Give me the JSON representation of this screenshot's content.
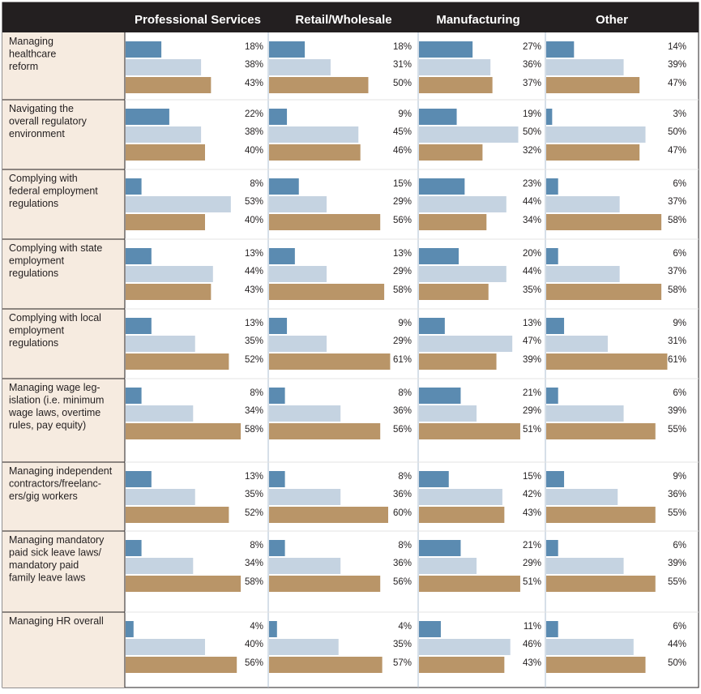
{
  "chart_data": {
    "type": "bar",
    "orientation": "horizontal",
    "panels": [
      "Professional Services",
      "Retail/Wholesale",
      "Manufacturing",
      "Other"
    ],
    "series_colors": [
      "#5b8bb1",
      "#c5d3e1",
      "#b99568"
    ],
    "rows": [
      {
        "label_lines": [
          "Managing",
          "healthcare",
          "reform"
        ],
        "values": [
          [
            18,
            38,
            43
          ],
          [
            18,
            31,
            50
          ],
          [
            27,
            36,
            37
          ],
          [
            14,
            39,
            47
          ]
        ],
        "labels": [
          [
            "18%",
            "38%",
            "43%"
          ],
          [
            "18%",
            "31%",
            "50%"
          ],
          [
            "27%",
            "36%",
            "37%"
          ],
          [
            "14%",
            "39%",
            "47%"
          ]
        ]
      },
      {
        "label_lines": [
          "Navigating the",
          "overall regulatory",
          "environment"
        ],
        "values": [
          [
            22,
            38,
            40
          ],
          [
            9,
            45,
            46
          ],
          [
            19,
            50,
            32
          ],
          [
            3,
            50,
            47
          ]
        ],
        "labels": [
          [
            "22%",
            "38%",
            "40%"
          ],
          [
            "9%",
            "45%",
            "46%"
          ],
          [
            "19%",
            "50%",
            "32%"
          ],
          [
            "3%",
            "50%",
            "47%"
          ]
        ]
      },
      {
        "label_lines": [
          "Complying with",
          "federal employment",
          "regulations"
        ],
        "values": [
          [
            8,
            53,
            40
          ],
          [
            15,
            29,
            56
          ],
          [
            23,
            44,
            34
          ],
          [
            6,
            37,
            58
          ]
        ],
        "labels": [
          [
            "8%",
            "53%",
            "40%"
          ],
          [
            "15%",
            "29%",
            "56%"
          ],
          [
            "23%",
            "44%",
            "34%"
          ],
          [
            "6%",
            "37%",
            "58%"
          ]
        ]
      },
      {
        "label_lines": [
          "Complying with state",
          "employment",
          "regulations"
        ],
        "values": [
          [
            13,
            44,
            43
          ],
          [
            13,
            29,
            58
          ],
          [
            20,
            44,
            35
          ],
          [
            6,
            37,
            58
          ]
        ],
        "labels": [
          [
            "13%",
            "44%",
            "43%"
          ],
          [
            "13%",
            "29%",
            "58%"
          ],
          [
            "20%",
            "44%",
            "35%"
          ],
          [
            "6%",
            "37%",
            "58%"
          ]
        ]
      },
      {
        "label_lines": [
          "Complying with local",
          "employment",
          "regulations"
        ],
        "values": [
          [
            13,
            35,
            52
          ],
          [
            9,
            29,
            61
          ],
          [
            13,
            47,
            39
          ],
          [
            9,
            31,
            61
          ]
        ],
        "labels": [
          [
            "13%",
            "35%",
            "52%"
          ],
          [
            "9%",
            "29%",
            "61%"
          ],
          [
            "13%",
            "47%",
            "39%"
          ],
          [
            "9%",
            "31%",
            "61%"
          ]
        ]
      },
      {
        "label_lines": [
          "Managing wage leg-",
          "islation (i.e. minimum",
          "wage laws, overtime",
          "rules, pay equity)"
        ],
        "values": [
          [
            8,
            34,
            58
          ],
          [
            8,
            36,
            56
          ],
          [
            21,
            29,
            51
          ],
          [
            6,
            39,
            55
          ]
        ],
        "labels": [
          [
            "8%",
            "34%",
            "58%"
          ],
          [
            "8%",
            "36%",
            "56%"
          ],
          [
            "21%",
            "29%",
            "51%"
          ],
          [
            "6%",
            "39%",
            "55%"
          ]
        ]
      },
      {
        "label_lines": [
          "Managing independent",
          "contractors/freelanc-",
          "ers/gig workers"
        ],
        "values": [
          [
            13,
            35,
            52
          ],
          [
            8,
            36,
            60
          ],
          [
            15,
            42,
            43
          ],
          [
            9,
            36,
            55
          ]
        ],
        "labels": [
          [
            "13%",
            "35%",
            "52%"
          ],
          [
            "8%",
            "36%",
            "60%"
          ],
          [
            "15%",
            "42%",
            "43%"
          ],
          [
            "9%",
            "36%",
            "55%"
          ]
        ]
      },
      {
        "label_lines": [
          "Managing mandatory",
          "paid sick leave laws/",
          "mandatory paid",
          "family leave laws"
        ],
        "values": [
          [
            8,
            34,
            58
          ],
          [
            8,
            36,
            56
          ],
          [
            21,
            29,
            51
          ],
          [
            6,
            39,
            55
          ]
        ],
        "labels": [
          [
            "8%",
            "34%",
            "58%"
          ],
          [
            "8%",
            "36%",
            "56%"
          ],
          [
            "21%",
            "29%",
            "51%"
          ],
          [
            "6%",
            "39%",
            "55%"
          ]
        ]
      },
      {
        "label_lines": [
          "Managing HR overall"
        ],
        "values": [
          [
            4,
            40,
            56
          ],
          [
            4,
            35,
            57
          ],
          [
            11,
            46,
            43
          ],
          [
            6,
            44,
            50
          ]
        ],
        "labels": [
          [
            "4%",
            "40%",
            "56%"
          ],
          [
            "4%",
            "35%",
            "57%"
          ],
          [
            "11%",
            "46%",
            "43%"
          ],
          [
            "6%",
            "44%",
            "50%"
          ]
        ]
      }
    ]
  }
}
